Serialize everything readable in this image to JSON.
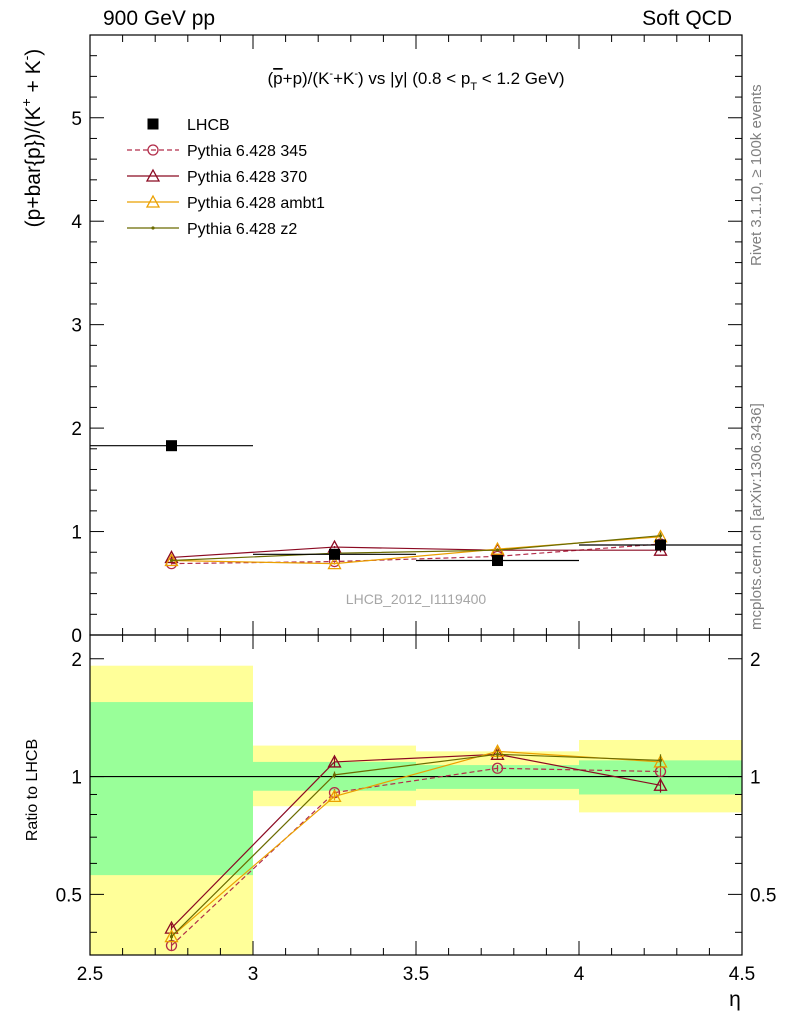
{
  "header": {
    "left": "900 GeV pp",
    "right": "Soft QCD"
  },
  "side_labels": {
    "rivet": "Rivet 3.1.10, ≥ 100k events",
    "source": "mcplots.cern.ch [arXiv:1306.3436]"
  },
  "watermark": "LHCB_2012_I1119400",
  "chart_data": [
    {
      "type": "scatter",
      "panel": "main",
      "title": "(p̅+p)/(K⁻+K⁻) vs |y| (0.8 < p_T < 1.2 GeV)",
      "title_parts": {
        "pre": "(",
        "pbar": "p",
        "mid1": "+p)/(K",
        "sup1": "-",
        "mid2": "+K",
        "sup2": "-",
        "mid3": ") vs |y| (0.8 < p",
        "sub": "T",
        "post": " < 1.2 GeV)"
      },
      "ylabel": {
        "pre": "(p+bar{p})/(K",
        "sup1": "+",
        "mid": " + K",
        "sup2": "-",
        "post": ")"
      },
      "xlim": [
        2.5,
        4.5
      ],
      "ylim": [
        0,
        5.8
      ],
      "yticks": [
        0,
        1,
        2,
        3,
        4,
        5
      ],
      "ytick_labels": [
        "0",
        "1",
        "2",
        "3",
        "4",
        "5"
      ],
      "x": [
        2.75,
        3.25,
        3.75,
        4.25
      ],
      "xerr": 0.25,
      "series": [
        {
          "name": "LHCB",
          "color": "#000000",
          "marker": "square",
          "line": "none",
          "values": [
            1.83,
            0.78,
            0.72,
            0.87
          ],
          "errors": [
            0.02,
            0.02,
            0.02,
            0.03
          ]
        },
        {
          "name": "Pythia 6.428 345",
          "color": "#b22d4a",
          "marker": "circle",
          "line": "dashed",
          "values": [
            0.69,
            0.71,
            0.76,
            0.88
          ],
          "errors": [
            0.01,
            0.01,
            0.01,
            0.02
          ]
        },
        {
          "name": "Pythia 6.428 370",
          "color": "#8b0a22",
          "marker": "triangle",
          "line": "solid",
          "values": [
            0.75,
            0.85,
            0.82,
            0.82
          ],
          "errors": [
            0.01,
            0.01,
            0.01,
            0.02
          ]
        },
        {
          "name": "Pythia 6.428 ambt1",
          "color": "#eba000",
          "marker": "triangle",
          "line": "solid",
          "values": [
            0.72,
            0.69,
            0.83,
            0.95
          ],
          "errors": [
            0.01,
            0.01,
            0.01,
            0.03
          ]
        },
        {
          "name": "Pythia 6.428 z2",
          "color": "#6b6b00",
          "marker": "dot",
          "line": "solid",
          "values": [
            0.72,
            0.79,
            0.82,
            0.96
          ],
          "errors": [
            0.01,
            0.01,
            0.01,
            0.03
          ]
        }
      ],
      "legend_position": "top-left"
    },
    {
      "type": "line",
      "panel": "ratio",
      "ylabel": "Ratio to LHCB",
      "xlabel": "η",
      "xlim": [
        2.5,
        4.5
      ],
      "ylim": [
        0.35,
        2.3
      ],
      "yscale": "log",
      "xticks": [
        2.5,
        3,
        3.5,
        4,
        4.5
      ],
      "xtick_labels": [
        "2.5",
        "3",
        "3.5",
        "4",
        "4.5"
      ],
      "yticks": [
        0.5,
        1,
        2
      ],
      "ytick_labels": [
        "0.5",
        "1",
        "2"
      ],
      "reference_line": 1,
      "bands": [
        {
          "xlow": 2.5,
          "xhigh": 3.0,
          "yellow": [
            0.35,
            1.92
          ],
          "green": [
            0.56,
            1.55
          ]
        },
        {
          "xlow": 3.0,
          "xhigh": 3.5,
          "yellow": [
            0.84,
            1.2
          ],
          "green": [
            0.92,
            1.09
          ]
        },
        {
          "xlow": 3.5,
          "xhigh": 4.0,
          "yellow": [
            0.87,
            1.16
          ],
          "green": [
            0.93,
            1.07
          ]
        },
        {
          "xlow": 4.0,
          "xhigh": 4.5,
          "yellow": [
            0.81,
            1.24
          ],
          "green": [
            0.9,
            1.1
          ]
        }
      ],
      "x": [
        2.75,
        3.25,
        3.75,
        4.25
      ],
      "series": [
        {
          "name": "Pythia 6.428 345",
          "values": [
            0.37,
            0.91,
            1.05,
            1.03
          ],
          "errors": [
            0.01,
            0.02,
            0.02,
            0.03
          ]
        },
        {
          "name": "Pythia 6.428 370",
          "values": [
            0.41,
            1.09,
            1.14,
            0.95
          ],
          "errors": [
            0.01,
            0.03,
            0.03,
            0.04
          ]
        },
        {
          "name": "Pythia 6.428 ambt1",
          "values": [
            0.39,
            0.89,
            1.16,
            1.09
          ],
          "errors": [
            0.01,
            0.02,
            0.03,
            0.04
          ]
        },
        {
          "name": "Pythia 6.428 z2",
          "values": [
            0.39,
            1.01,
            1.14,
            1.1
          ],
          "errors": [
            0.01,
            0.02,
            0.03,
            0.04
          ]
        }
      ]
    }
  ]
}
